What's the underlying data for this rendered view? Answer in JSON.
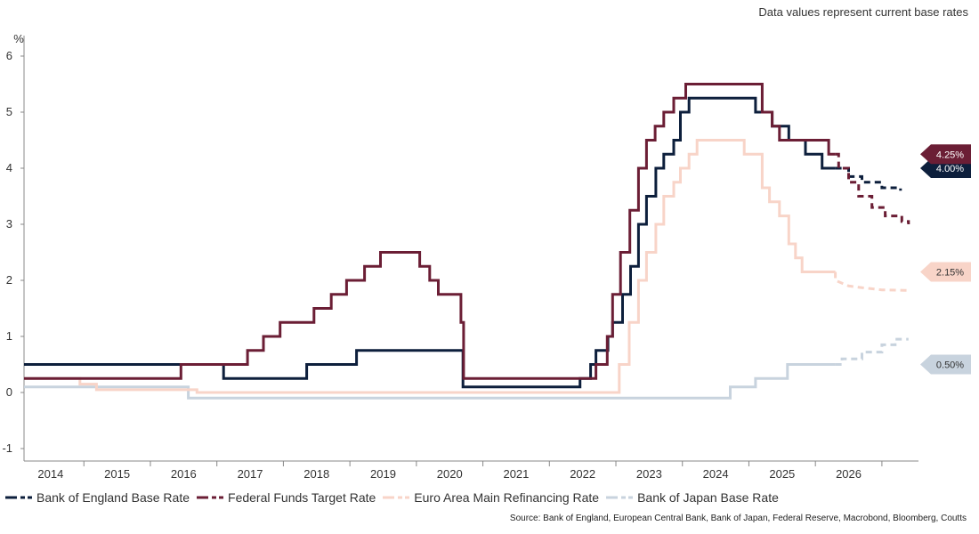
{
  "chart_data": {
    "type": "line",
    "subtitle": "Data values represent current base rates",
    "ylabel": "%",
    "source": "Source: Bank of England, European Central Bank, Bank of Japan, Federal Reserve, Macrobond, Bloomberg, Coutts",
    "xlim": [
      2013.6,
      2027.05
    ],
    "ylim": [
      -1,
      6
    ],
    "yticks": [
      "-1",
      "0",
      "1",
      "2",
      "3",
      "4",
      "5",
      "6"
    ],
    "xticks": [
      "2014",
      "2015",
      "2016",
      "2017",
      "2018",
      "2019",
      "2020",
      "2021",
      "2022",
      "2023",
      "2024",
      "2025",
      "2026"
    ],
    "grid": false,
    "legend_position": "bottom",
    "series": [
      {
        "name": "Bank of England Base Rate",
        "color": "#0d1f3c",
        "current_label": "4.00%",
        "actual": [
          [
            2013.6,
            0.5
          ],
          [
            2016.6,
            0.5
          ],
          [
            2016.6,
            0.25
          ],
          [
            2017.85,
            0.25
          ],
          [
            2017.85,
            0.5
          ],
          [
            2018.6,
            0.5
          ],
          [
            2018.6,
            0.75
          ],
          [
            2020.2,
            0.75
          ],
          [
            2020.2,
            0.1
          ],
          [
            2021.96,
            0.1
          ],
          [
            2021.96,
            0.25
          ],
          [
            2022.12,
            0.25
          ],
          [
            2022.12,
            0.5
          ],
          [
            2022.2,
            0.5
          ],
          [
            2022.2,
            0.75
          ],
          [
            2022.38,
            0.75
          ],
          [
            2022.38,
            1.0
          ],
          [
            2022.45,
            1.0
          ],
          [
            2022.45,
            1.25
          ],
          [
            2022.6,
            1.25
          ],
          [
            2022.6,
            1.75
          ],
          [
            2022.72,
            1.75
          ],
          [
            2022.72,
            2.25
          ],
          [
            2022.84,
            2.25
          ],
          [
            2022.84,
            3.0
          ],
          [
            2022.96,
            3.0
          ],
          [
            2022.96,
            3.5
          ],
          [
            2023.1,
            3.5
          ],
          [
            2023.1,
            4.0
          ],
          [
            2023.22,
            4.0
          ],
          [
            2023.22,
            4.25
          ],
          [
            2023.37,
            4.25
          ],
          [
            2023.37,
            4.5
          ],
          [
            2023.47,
            4.5
          ],
          [
            2023.47,
            5.0
          ],
          [
            2023.6,
            5.0
          ],
          [
            2023.6,
            5.25
          ],
          [
            2024.6,
            5.25
          ],
          [
            2024.6,
            5.0
          ],
          [
            2024.85,
            5.0
          ],
          [
            2024.85,
            4.75
          ],
          [
            2025.1,
            4.75
          ],
          [
            2025.1,
            4.5
          ],
          [
            2025.35,
            4.5
          ],
          [
            2025.35,
            4.25
          ],
          [
            2025.6,
            4.25
          ],
          [
            2025.6,
            4.0
          ],
          [
            2025.8,
            4.0
          ]
        ],
        "forecast": [
          [
            2025.8,
            4.0
          ],
          [
            2026.0,
            4.0
          ],
          [
            2026.0,
            3.85
          ],
          [
            2026.2,
            3.85
          ],
          [
            2026.2,
            3.75
          ],
          [
            2026.5,
            3.75
          ],
          [
            2026.5,
            3.65
          ],
          [
            2026.78,
            3.65
          ],
          [
            2026.78,
            3.6
          ]
        ]
      },
      {
        "name": "Federal Funds Target Rate",
        "color": "#6b1e35",
        "current_label": "4.25%",
        "actual": [
          [
            2013.6,
            0.25
          ],
          [
            2015.96,
            0.25
          ],
          [
            2015.96,
            0.5
          ],
          [
            2016.96,
            0.5
          ],
          [
            2016.96,
            0.75
          ],
          [
            2017.2,
            0.75
          ],
          [
            2017.2,
            1.0
          ],
          [
            2017.45,
            1.0
          ],
          [
            2017.45,
            1.25
          ],
          [
            2017.96,
            1.25
          ],
          [
            2017.96,
            1.5
          ],
          [
            2018.22,
            1.5
          ],
          [
            2018.22,
            1.75
          ],
          [
            2018.45,
            1.75
          ],
          [
            2018.45,
            2.0
          ],
          [
            2018.72,
            2.0
          ],
          [
            2018.72,
            2.25
          ],
          [
            2018.96,
            2.25
          ],
          [
            2018.96,
            2.5
          ],
          [
            2019.55,
            2.5
          ],
          [
            2019.55,
            2.25
          ],
          [
            2019.7,
            2.25
          ],
          [
            2019.7,
            2.0
          ],
          [
            2019.83,
            2.0
          ],
          [
            2019.83,
            1.75
          ],
          [
            2020.17,
            1.75
          ],
          [
            2020.17,
            1.25
          ],
          [
            2020.21,
            1.25
          ],
          [
            2020.21,
            0.25
          ],
          [
            2022.2,
            0.25
          ],
          [
            2022.2,
            0.5
          ],
          [
            2022.37,
            0.5
          ],
          [
            2022.37,
            1.0
          ],
          [
            2022.45,
            1.0
          ],
          [
            2022.45,
            1.75
          ],
          [
            2022.57,
            1.75
          ],
          [
            2022.57,
            2.5
          ],
          [
            2022.71,
            2.5
          ],
          [
            2022.71,
            3.25
          ],
          [
            2022.84,
            3.25
          ],
          [
            2022.84,
            4.0
          ],
          [
            2022.96,
            4.0
          ],
          [
            2022.96,
            4.5
          ],
          [
            2023.09,
            4.5
          ],
          [
            2023.09,
            4.75
          ],
          [
            2023.22,
            4.75
          ],
          [
            2023.22,
            5.0
          ],
          [
            2023.37,
            5.0
          ],
          [
            2023.37,
            5.25
          ],
          [
            2023.55,
            5.25
          ],
          [
            2023.55,
            5.5
          ],
          [
            2024.7,
            5.5
          ],
          [
            2024.7,
            5.0
          ],
          [
            2024.85,
            5.0
          ],
          [
            2024.85,
            4.75
          ],
          [
            2024.96,
            4.75
          ],
          [
            2024.96,
            4.5
          ],
          [
            2025.7,
            4.5
          ],
          [
            2025.7,
            4.25
          ],
          [
            2025.8,
            4.25
          ]
        ],
        "forecast": [
          [
            2025.8,
            4.25
          ],
          [
            2025.85,
            4.25
          ],
          [
            2025.85,
            4.0
          ],
          [
            2026.0,
            4.0
          ],
          [
            2026.0,
            3.75
          ],
          [
            2026.15,
            3.75
          ],
          [
            2026.15,
            3.5
          ],
          [
            2026.35,
            3.5
          ],
          [
            2026.35,
            3.3
          ],
          [
            2026.55,
            3.3
          ],
          [
            2026.55,
            3.15
          ],
          [
            2026.8,
            3.15
          ],
          [
            2026.8,
            3.05
          ],
          [
            2026.9,
            3.05
          ],
          [
            2026.9,
            3.0
          ]
        ]
      },
      {
        "name": "Euro Area Main Refinancing Rate",
        "color": "#f8d4c8",
        "current_label": "2.15%",
        "actual": [
          [
            2013.6,
            0.25
          ],
          [
            2014.44,
            0.25
          ],
          [
            2014.44,
            0.15
          ],
          [
            2014.69,
            0.15
          ],
          [
            2014.69,
            0.05
          ],
          [
            2016.2,
            0.05
          ],
          [
            2016.2,
            0.0
          ],
          [
            2022.55,
            0.0
          ],
          [
            2022.55,
            0.5
          ],
          [
            2022.7,
            0.5
          ],
          [
            2022.7,
            1.25
          ],
          [
            2022.84,
            1.25
          ],
          [
            2022.84,
            2.0
          ],
          [
            2022.96,
            2.0
          ],
          [
            2022.96,
            2.5
          ],
          [
            2023.1,
            2.5
          ],
          [
            2023.1,
            3.0
          ],
          [
            2023.22,
            3.0
          ],
          [
            2023.22,
            3.5
          ],
          [
            2023.37,
            3.5
          ],
          [
            2023.37,
            3.75
          ],
          [
            2023.47,
            3.75
          ],
          [
            2023.47,
            4.0
          ],
          [
            2023.6,
            4.0
          ],
          [
            2023.6,
            4.25
          ],
          [
            2023.72,
            4.25
          ],
          [
            2023.72,
            4.5
          ],
          [
            2024.43,
            4.5
          ],
          [
            2024.43,
            4.25
          ],
          [
            2024.7,
            4.25
          ],
          [
            2024.7,
            3.65
          ],
          [
            2024.81,
            3.65
          ],
          [
            2024.81,
            3.4
          ],
          [
            2024.96,
            3.4
          ],
          [
            2024.96,
            3.15
          ],
          [
            2025.1,
            3.15
          ],
          [
            2025.1,
            2.65
          ],
          [
            2025.2,
            2.65
          ],
          [
            2025.2,
            2.4
          ],
          [
            2025.3,
            2.4
          ],
          [
            2025.3,
            2.15
          ],
          [
            2025.8,
            2.15
          ]
        ],
        "forecast": [
          [
            2025.8,
            2.15
          ],
          [
            2025.8,
            2.0
          ],
          [
            2026.0,
            1.9
          ],
          [
            2026.2,
            1.87
          ],
          [
            2026.5,
            1.83
          ],
          [
            2026.9,
            1.82
          ]
        ]
      },
      {
        "name": "Bank of Japan Base Rate",
        "color": "#c8d3de",
        "current_label": "0.50%",
        "actual": [
          [
            2013.6,
            0.1
          ],
          [
            2016.07,
            0.1
          ],
          [
            2016.07,
            -0.1
          ],
          [
            2024.22,
            -0.1
          ],
          [
            2024.22,
            0.1
          ],
          [
            2024.6,
            0.1
          ],
          [
            2024.6,
            0.25
          ],
          [
            2025.08,
            0.25
          ],
          [
            2025.08,
            0.5
          ],
          [
            2025.8,
            0.5
          ]
        ],
        "forecast": [
          [
            2025.8,
            0.5
          ],
          [
            2025.9,
            0.5
          ],
          [
            2025.9,
            0.6
          ],
          [
            2026.2,
            0.6
          ],
          [
            2026.2,
            0.72
          ],
          [
            2026.5,
            0.72
          ],
          [
            2026.5,
            0.85
          ],
          [
            2026.7,
            0.85
          ],
          [
            2026.7,
            0.95
          ],
          [
            2026.9,
            0.95
          ]
        ]
      }
    ]
  }
}
